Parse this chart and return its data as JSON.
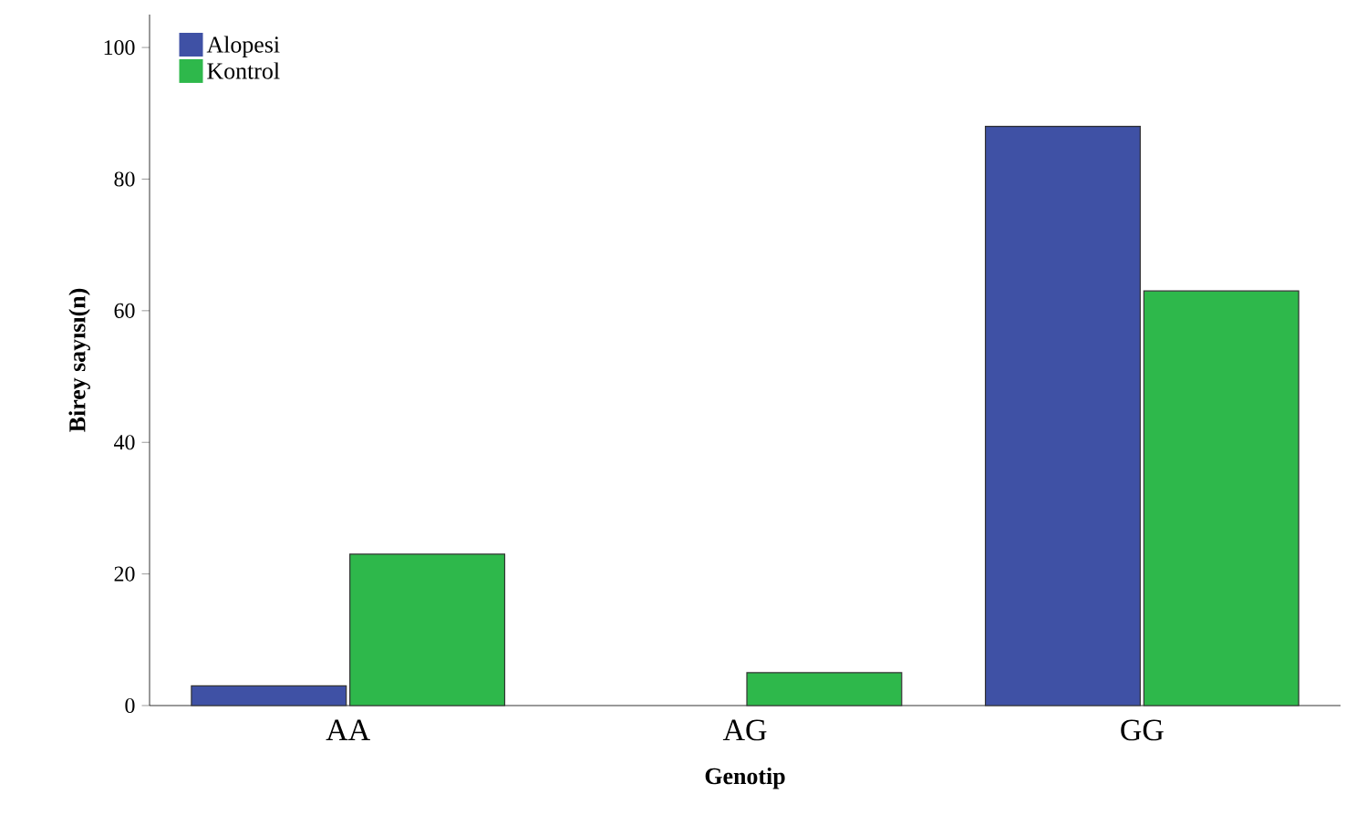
{
  "chart_data": {
    "type": "bar",
    "xlabel": "Genotip",
    "ylabel": "Birey sayısı(n)",
    "categories": [
      "AA",
      "AG",
      "GG"
    ],
    "series": [
      {
        "name": "Alopesi",
        "color": "#3f51a5",
        "values": [
          3,
          null,
          88
        ]
      },
      {
        "name": "Kontrol",
        "color": "#2eb84b",
        "values": [
          23,
          5,
          63
        ]
      }
    ],
    "ylim": [
      0,
      105
    ],
    "yticks": [
      0,
      20,
      40,
      60,
      80,
      100
    ],
    "legend": "top left"
  }
}
